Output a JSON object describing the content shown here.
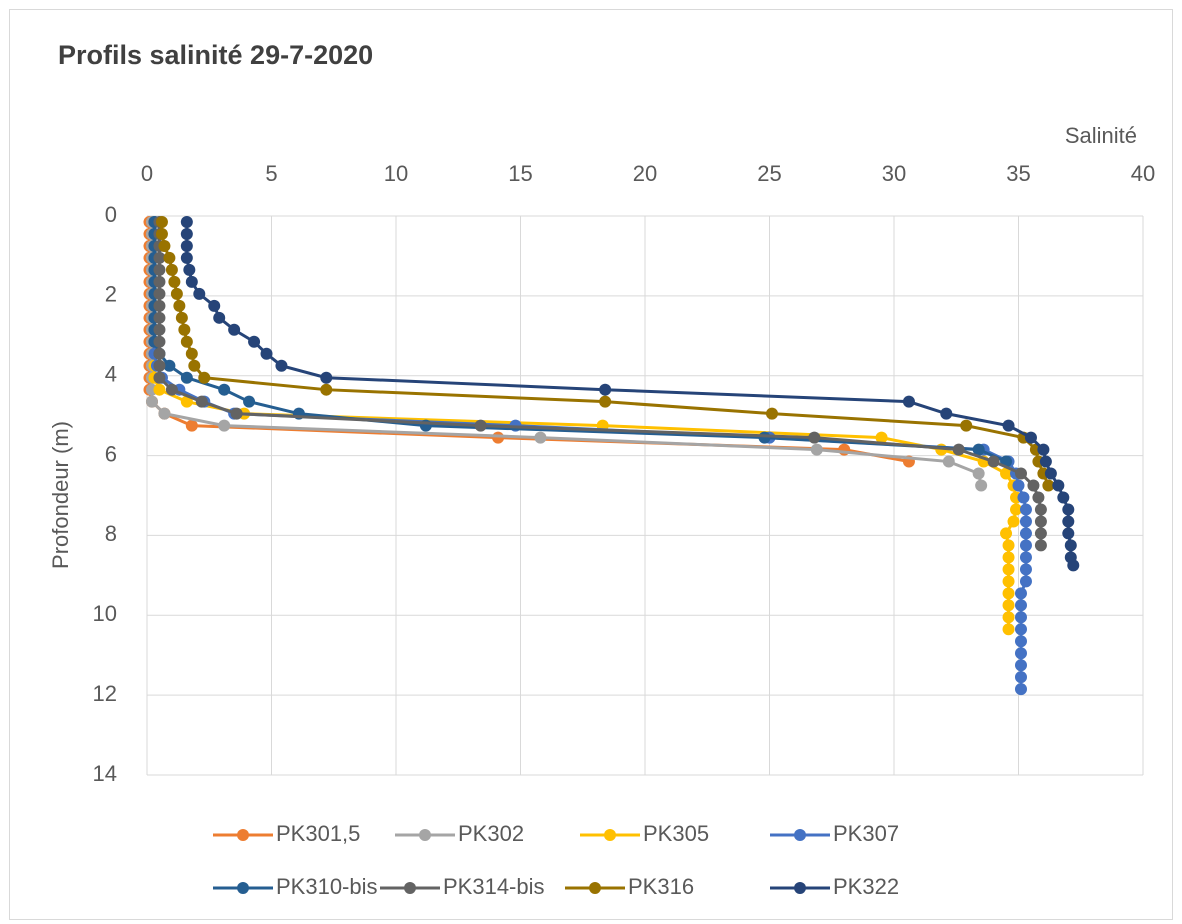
{
  "chart_data": {
    "type": "line",
    "title": "Profils salinité 29-7-2020",
    "x_label": "Salinité",
    "y_label": "Profondeur (m)",
    "xlim": [
      0,
      40
    ],
    "xticks": [
      0,
      5,
      10,
      15,
      20,
      25,
      30,
      35,
      40
    ],
    "x_axis_position": "top",
    "ylim": [
      0,
      14
    ],
    "yticks": [
      0,
      2,
      4,
      6,
      8,
      10,
      12,
      14
    ],
    "y_inverted": true,
    "grid": true,
    "legend": "bottom",
    "series": [
      {
        "name": "PK301,5",
        "color": "#ED7D31",
        "x": [
          0.1,
          0.1,
          0.1,
          0.1,
          0.1,
          0.1,
          0.1,
          0.1,
          0.1,
          0.1,
          0.1,
          0.1,
          0.1,
          0.1,
          0.1,
          0.2,
          0.7,
          1.8,
          14.1,
          28.0,
          30.6
        ],
        "values": [
          0.15,
          0.45,
          0.75,
          1.05,
          1.35,
          1.65,
          1.95,
          2.25,
          2.55,
          2.85,
          3.15,
          3.45,
          3.75,
          4.05,
          4.35,
          4.65,
          4.95,
          5.25,
          5.55,
          5.85,
          6.15
        ]
      },
      {
        "name": "PK302",
        "color": "#A5A5A5",
        "x": [
          0.2,
          0.2,
          0.2,
          0.2,
          0.2,
          0.2,
          0.2,
          0.2,
          0.2,
          0.2,
          0.2,
          0.2,
          0.2,
          0.2,
          0.2,
          0.2,
          0.7,
          3.1,
          15.8,
          26.9,
          32.2,
          33.4,
          33.5
        ],
        "values": [
          0.15,
          0.45,
          0.75,
          1.05,
          1.35,
          1.65,
          1.95,
          2.25,
          2.55,
          2.85,
          3.15,
          3.45,
          3.75,
          4.05,
          4.35,
          4.65,
          4.95,
          5.25,
          5.55,
          5.85,
          6.15,
          6.45,
          6.75
        ]
      },
      {
        "name": "PK305",
        "color": "#FFC000",
        "x": [
          0.3,
          0.3,
          0.3,
          0.3,
          0.3,
          0.3,
          0.3,
          0.3,
          0.3,
          0.3,
          0.3,
          0.3,
          0.3,
          0.3,
          0.5,
          1.6,
          3.9,
          18.3,
          29.5,
          31.9,
          33.6,
          34.5,
          34.8,
          34.9,
          34.9,
          34.8,
          34.5,
          34.6,
          34.6,
          34.6,
          34.6,
          34.6,
          34.6,
          34.6,
          34.6
        ],
        "values": [
          0.15,
          0.45,
          0.75,
          1.05,
          1.35,
          1.65,
          1.95,
          2.25,
          2.55,
          2.85,
          3.15,
          3.45,
          3.75,
          4.05,
          4.35,
          4.65,
          4.95,
          5.25,
          5.55,
          5.85,
          6.15,
          6.45,
          6.75,
          7.05,
          7.35,
          7.65,
          7.95,
          8.25,
          8.55,
          8.85,
          9.15,
          9.45,
          9.75,
          10.05,
          10.35
        ]
      },
      {
        "name": "PK307",
        "color": "#4472C4",
        "x": [
          0.3,
          0.3,
          0.3,
          0.3,
          0.3,
          0.3,
          0.3,
          0.3,
          0.3,
          0.3,
          0.3,
          0.3,
          0.4,
          0.6,
          1.3,
          2.3,
          3.5,
          14.8,
          25.0,
          33.6,
          34.6,
          34.9,
          35.0,
          35.2,
          35.3,
          35.3,
          35.3,
          35.3,
          35.3,
          35.3,
          35.3,
          35.1,
          35.1,
          35.1,
          35.1,
          35.1,
          35.1,
          35.1,
          35.1,
          35.1
        ],
        "values": [
          0.15,
          0.45,
          0.75,
          1.05,
          1.35,
          1.65,
          1.95,
          2.25,
          2.55,
          2.85,
          3.15,
          3.45,
          3.75,
          4.05,
          4.35,
          4.65,
          4.95,
          5.25,
          5.55,
          5.85,
          6.15,
          6.45,
          6.75,
          7.05,
          7.35,
          7.65,
          7.95,
          8.25,
          8.55,
          8.85,
          9.15,
          9.45,
          9.75,
          10.05,
          10.35,
          10.65,
          10.95,
          11.25,
          11.55,
          11.85
        ]
      },
      {
        "name": "PK310-bis",
        "color": "#255E91",
        "x": [
          0.3,
          0.3,
          0.3,
          0.3,
          0.3,
          0.3,
          0.3,
          0.3,
          0.3,
          0.3,
          0.3,
          0.5,
          0.9,
          1.6,
          3.1,
          4.1,
          6.1,
          11.2,
          24.8,
          33.4,
          34.5
        ],
        "values": [
          0.15,
          0.45,
          0.75,
          1.05,
          1.35,
          1.65,
          1.95,
          2.25,
          2.55,
          2.85,
          3.15,
          3.45,
          3.75,
          4.05,
          4.35,
          4.65,
          4.95,
          5.25,
          5.55,
          5.85,
          6.15
        ]
      },
      {
        "name": "PK314-bis",
        "color": "#636363",
        "x": [
          0.5,
          0.5,
          0.5,
          0.5,
          0.5,
          0.5,
          0.5,
          0.5,
          0.5,
          0.5,
          0.5,
          0.5,
          0.5,
          0.5,
          1.0,
          2.2,
          3.6,
          13.4,
          26.8,
          32.6,
          34.0,
          35.1,
          35.6,
          35.8,
          35.9,
          35.9,
          35.9,
          35.9
        ],
        "values": [
          0.15,
          0.45,
          0.75,
          1.05,
          1.35,
          1.65,
          1.95,
          2.25,
          2.55,
          2.85,
          3.15,
          3.45,
          3.75,
          4.05,
          4.35,
          4.65,
          4.95,
          5.25,
          5.55,
          5.85,
          6.15,
          6.45,
          6.75,
          7.05,
          7.35,
          7.65,
          7.95,
          8.25
        ]
      },
      {
        "name": "PK316",
        "color": "#997300",
        "x": [
          0.6,
          0.6,
          0.7,
          0.9,
          1.0,
          1.1,
          1.2,
          1.3,
          1.4,
          1.5,
          1.6,
          1.8,
          1.9,
          2.3,
          7.2,
          18.4,
          25.1,
          32.9,
          35.2,
          35.7,
          35.8,
          36.0,
          36.2
        ],
        "values": [
          0.15,
          0.45,
          0.75,
          1.05,
          1.35,
          1.65,
          1.95,
          2.25,
          2.55,
          2.85,
          3.15,
          3.45,
          3.75,
          4.05,
          4.35,
          4.65,
          4.95,
          5.25,
          5.55,
          5.85,
          6.15,
          6.45,
          6.75
        ]
      },
      {
        "name": "PK322",
        "color": "#264478",
        "x": [
          1.6,
          1.6,
          1.6,
          1.6,
          1.7,
          1.8,
          2.1,
          2.7,
          2.9,
          3.5,
          4.3,
          4.8,
          5.4,
          7.2,
          18.4,
          30.6,
          32.1,
          34.6,
          35.5,
          36.0,
          36.1,
          36.3,
          36.6,
          36.8,
          37.0,
          37.0,
          37.0,
          37.1,
          37.1,
          37.2
        ],
        "values": [
          0.15,
          0.45,
          0.75,
          1.05,
          1.35,
          1.65,
          1.95,
          2.25,
          2.55,
          2.85,
          3.15,
          3.45,
          3.75,
          4.05,
          4.35,
          4.65,
          4.95,
          5.25,
          5.55,
          5.85,
          6.15,
          6.45,
          6.75,
          7.05,
          7.35,
          7.65,
          7.95,
          8.25,
          8.55,
          8.75
        ]
      }
    ]
  }
}
